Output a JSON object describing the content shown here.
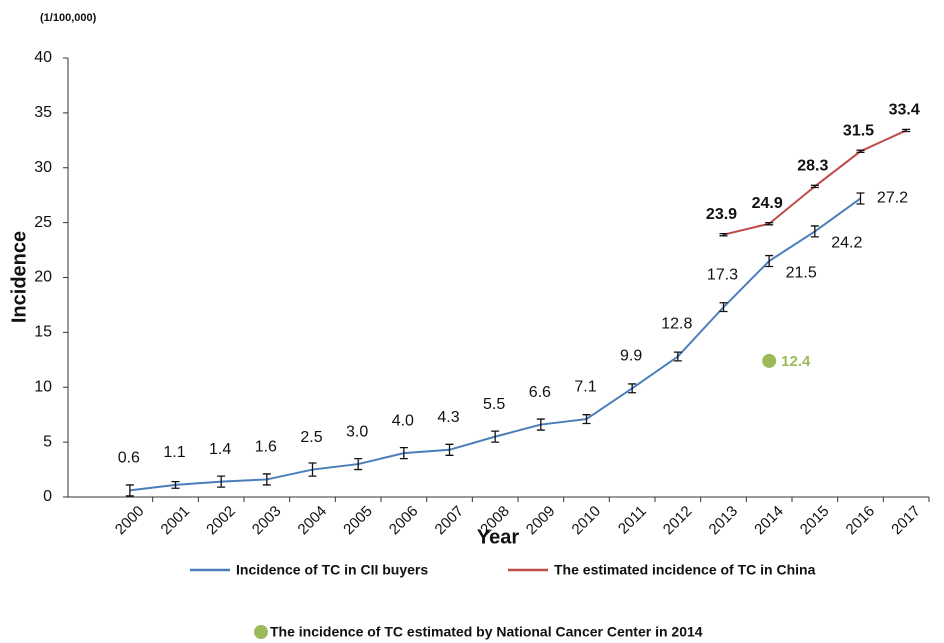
{
  "chart_data": {
    "type": "line",
    "unit_label": "(1/100,000)",
    "y_label": "Incidence",
    "x_label": "Year",
    "categories": [
      "2000",
      "2001",
      "2002",
      "2003",
      "2004",
      "2005",
      "2006",
      "2007",
      "2008",
      "2009",
      "2010",
      "2011",
      "2012",
      "2013",
      "2014",
      "2015",
      "2016",
      "2017"
    ],
    "ylim": [
      0,
      40
    ],
    "yticks": [
      0,
      5,
      10,
      15,
      20,
      25,
      30,
      35,
      40
    ],
    "series": [
      {
        "name": "Incidence of TC in CII buyers",
        "color": "#4a7ebb",
        "marker": "errorbar",
        "values": [
          0.6,
          1.1,
          1.4,
          1.6,
          2.5,
          3.0,
          4.0,
          4.3,
          5.5,
          6.6,
          7.1,
          9.9,
          12.8,
          17.3,
          21.5,
          24.2,
          27.2,
          null
        ],
        "value_labels": [
          "0.6",
          "1.1",
          "1.4",
          "1.6",
          "2.5",
          "3.0",
          "4.0",
          "4.3",
          "5.5",
          "6.6",
          "7.1",
          "9.9",
          "12.8",
          "17.3",
          "21.5",
          "24.2",
          "27.2",
          null
        ],
        "errors": [
          0.5,
          0.3,
          0.5,
          0.5,
          0.6,
          0.5,
          0.5,
          0.5,
          0.5,
          0.5,
          0.4,
          0.4,
          0.4,
          0.4,
          0.5,
          0.5,
          0.5,
          null
        ]
      },
      {
        "name": "The estimated incidence of TC in China",
        "color": "#be4b48",
        "marker": "errorbar",
        "values": [
          null,
          null,
          null,
          null,
          null,
          null,
          null,
          null,
          null,
          null,
          null,
          null,
          null,
          23.9,
          24.9,
          28.3,
          31.5,
          33.4
        ],
        "errors": [
          null,
          null,
          null,
          null,
          null,
          null,
          null,
          null,
          null,
          null,
          null,
          null,
          null,
          0.1,
          0.1,
          0.1,
          0.1,
          0.1
        ]
      },
      {
        "name": "The incidence of TC estimated by National Cancer Center in 2014",
        "color": "#9bbb59",
        "marker": "circle",
        "values": [
          null,
          null,
          null,
          null,
          null,
          null,
          null,
          null,
          null,
          null,
          null,
          null,
          null,
          null,
          12.4,
          null,
          null,
          null
        ]
      }
    ]
  }
}
